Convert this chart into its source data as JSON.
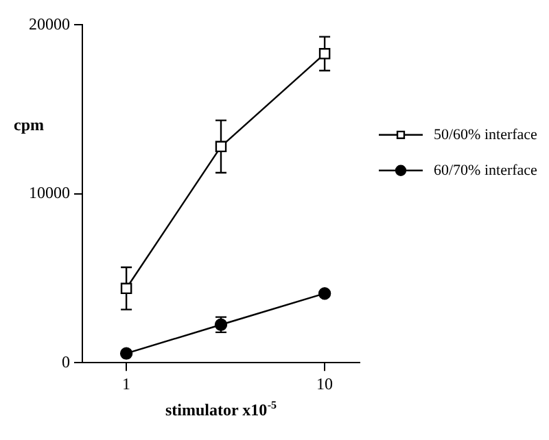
{
  "chart_data": {
    "type": "line",
    "xlabel": "stimulator x10$^{-5}$",
    "ylabel": "cpm",
    "log": "x",
    "xlim": [
      0.62,
      15
    ],
    "xticks": [
      1,
      10
    ],
    "ylim": [
      0,
      20000
    ],
    "yticks": [
      0,
      10000,
      20000
    ],
    "grid": false,
    "legend": "right",
    "line_style": "solid",
    "series": [
      {
        "name": "50/60% interface",
        "color": "#000000",
        "marker": "square",
        "x": [
          1,
          3,
          10
        ],
        "values": [
          4400,
          12800,
          18300
        ],
        "errors": [
          1250,
          1550,
          1000
        ]
      },
      {
        "name": "60/70% interface",
        "color": "#000000",
        "marker": "circle",
        "x": [
          1,
          3,
          10
        ],
        "values": [
          550,
          2250,
          4100
        ],
        "errors": [
          null,
          450,
          null
        ]
      }
    ]
  }
}
